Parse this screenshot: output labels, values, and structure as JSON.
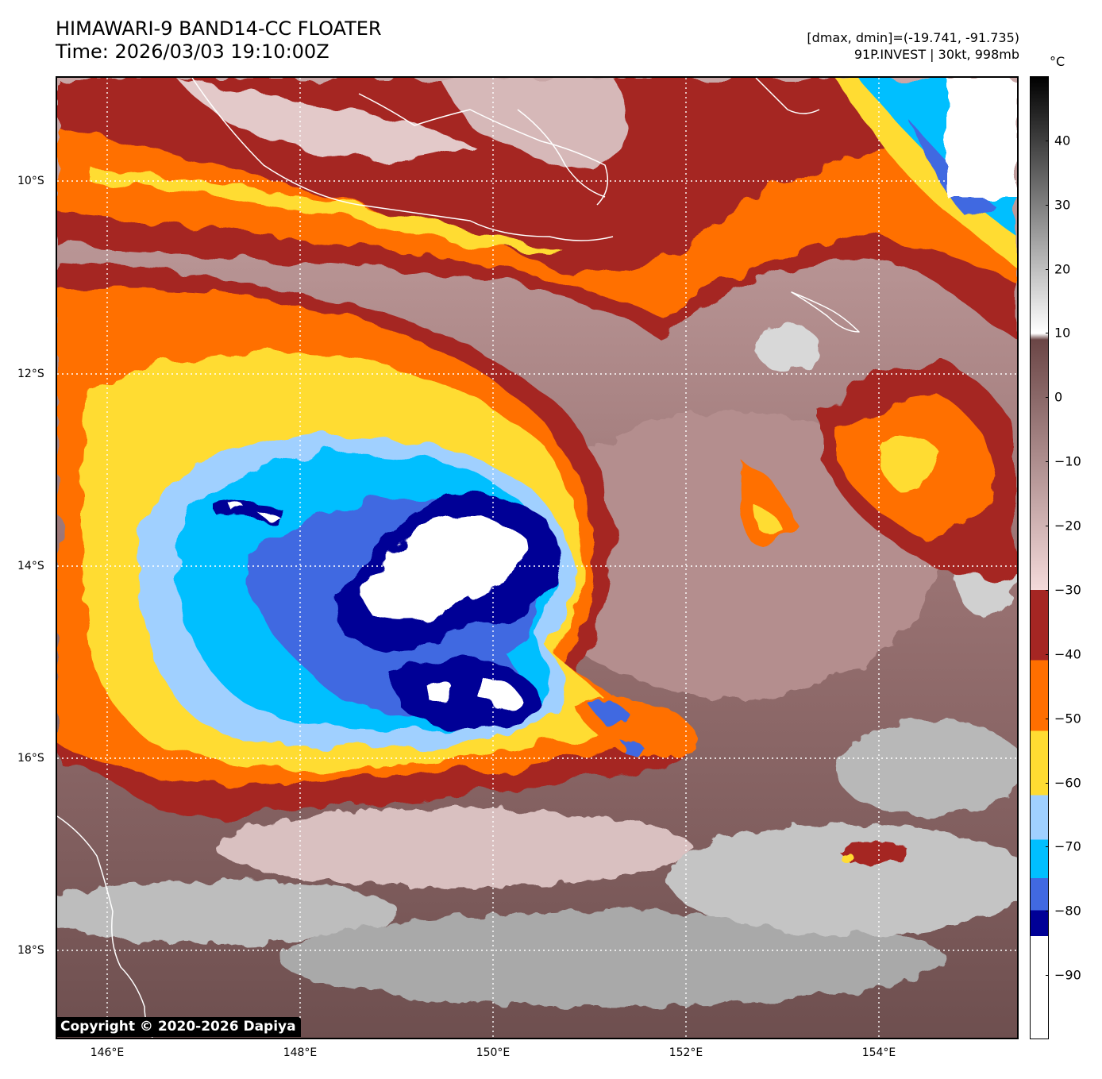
{
  "header": {
    "title": "HIMAWARI-9 BAND14-CC FLOATER",
    "time": "Time: 2026/03/03 19:10:00Z",
    "range": "[dmax, dmin]=(-19.741, -91.735)",
    "storm": "91P.INVEST | 30kt, 998mb"
  },
  "copyright": "Copyright © 2020-2026 Dapiya",
  "map": {
    "lat_labels": [
      "10°S",
      "12°S",
      "14°S",
      "16°S",
      "18°S"
    ],
    "lon_labels": [
      "146°E",
      "148°E",
      "150°E",
      "152°E",
      "154°E"
    ],
    "grid": "dotted white"
  },
  "colorbar": {
    "unit": "°C",
    "ticks": [
      "40",
      "30",
      "20",
      "10",
      "0",
      "−10",
      "−20",
      "−30",
      "−40",
      "−50",
      "−60",
      "−70",
      "−80",
      "−90"
    ],
    "tick_values": [
      40,
      30,
      20,
      10,
      0,
      -10,
      -20,
      -30,
      -40,
      -50,
      -60,
      -70,
      -80,
      -90
    ],
    "range": [
      -100,
      50
    ],
    "colors": {
      "warm_black": "#000000",
      "warm_white": "#ffffff",
      "mauve_dark": "#6b4646",
      "mauve_light": "#f4dada",
      "brick": "#a52623",
      "orange": "#ff6f00",
      "yellow": "#ffdc32",
      "light_blue": "#a0d0ff",
      "cyan": "#00bfff",
      "royal_blue": "#4169e1",
      "navy": "#000096",
      "white": "#ffffff"
    }
  }
}
